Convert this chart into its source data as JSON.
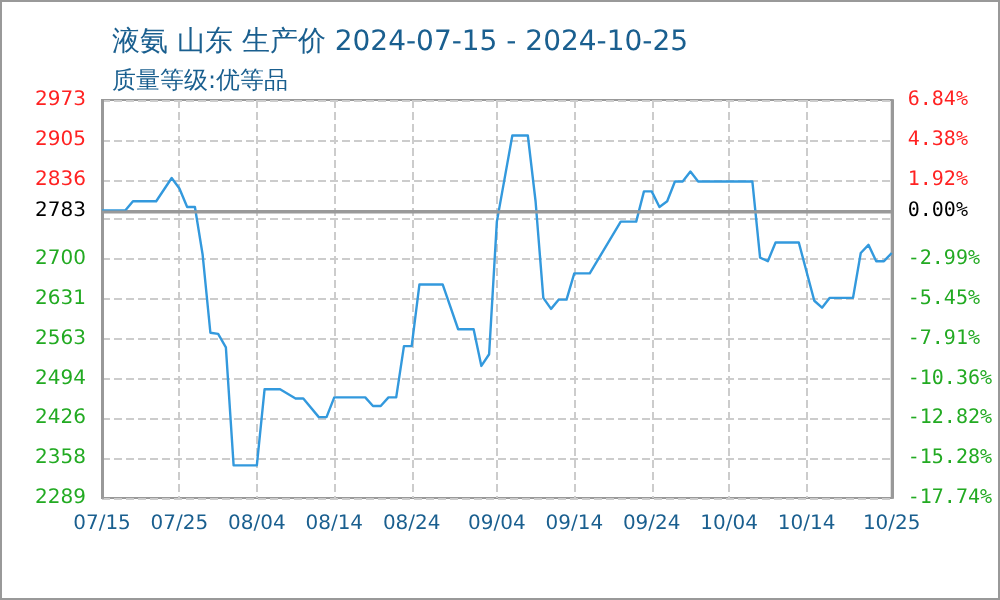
{
  "chart_data": {
    "type": "line",
    "title": "液氨 山东 生产价 2024-07-15 - 2024-10-25",
    "subtitle": "质量等级:优等品",
    "x": [
      "2024-07-15",
      "2024-07-18",
      "2024-07-19",
      "2024-07-22",
      "2024-07-24",
      "2024-07-25",
      "2024-07-26",
      "2024-07-27",
      "2024-07-28",
      "2024-07-29",
      "2024-07-30",
      "2024-07-31",
      "2024-08-01",
      "2024-08-04",
      "2024-08-05",
      "2024-08-07",
      "2024-08-09",
      "2024-08-10",
      "2024-08-12",
      "2024-08-13",
      "2024-08-14",
      "2024-08-18",
      "2024-08-19",
      "2024-08-20",
      "2024-08-21",
      "2024-08-22",
      "2024-08-23",
      "2024-08-24",
      "2024-08-25",
      "2024-08-28",
      "2024-08-30",
      "2024-09-01",
      "2024-09-02",
      "2024-09-03",
      "2024-09-04",
      "2024-09-06",
      "2024-09-08",
      "2024-09-09",
      "2024-09-10",
      "2024-09-11",
      "2024-09-12",
      "2024-09-13",
      "2024-09-14",
      "2024-09-16",
      "2024-09-20",
      "2024-09-22",
      "2024-09-23",
      "2024-09-24",
      "2024-09-25",
      "2024-09-26",
      "2024-09-27",
      "2024-09-28",
      "2024-09-29",
      "2024-09-30",
      "2024-10-07",
      "2024-10-08",
      "2024-10-09",
      "2024-10-10",
      "2024-10-13",
      "2024-10-15",
      "2024-10-16",
      "2024-10-17",
      "2024-10-20",
      "2024-10-21",
      "2024-10-22",
      "2024-10-23",
      "2024-10-24",
      "2024-10-25"
    ],
    "series": [
      {
        "color": "#3399dd",
        "values": [
          2783,
          2783,
          2799,
          2799,
          2839,
          2821,
          2789,
          2789,
          2707,
          2573,
          2571,
          2548,
          2345,
          2345,
          2476,
          2476,
          2460,
          2460,
          2428,
          2428,
          2462,
          2462,
          2447,
          2447,
          2462,
          2462,
          2550,
          2550,
          2656,
          2656,
          2579,
          2579,
          2516,
          2536,
          2764,
          2912,
          2912,
          2799,
          2633,
          2614,
          2630,
          2630,
          2675,
          2675,
          2764,
          2764,
          2816,
          2816,
          2789,
          2799,
          2833,
          2833,
          2850,
          2833,
          2833,
          2702,
          2696,
          2728,
          2728,
          2628,
          2616,
          2633,
          2633,
          2710,
          2724,
          2696,
          2696,
          2710
        ]
      }
    ],
    "xlim": [
      "2024-07-15",
      "2024-10-25"
    ],
    "xticks": [
      {
        "value": "2024-07-15",
        "label": "07/15"
      },
      {
        "value": "2024-07-25",
        "label": "07/25"
      },
      {
        "value": "2024-08-04",
        "label": "08/04"
      },
      {
        "value": "2024-08-14",
        "label": "08/14"
      },
      {
        "value": "2024-08-24",
        "label": "08/24"
      },
      {
        "value": "2024-09-04",
        "label": "09/04"
      },
      {
        "value": "2024-09-14",
        "label": "09/14"
      },
      {
        "value": "2024-09-24",
        "label": "09/24"
      },
      {
        "value": "2024-10-04",
        "label": "10/04"
      },
      {
        "value": "2024-10-14",
        "label": "10/14"
      },
      {
        "value": "2024-10-25",
        "label": "10/25"
      }
    ],
    "ylim": [
      2289,
      2973
    ],
    "yticks": [
      2289,
      2358,
      2426,
      2494,
      2563,
      2631,
      2700,
      {
        "value": 2768,
        "label": null
      },
      2783,
      2836,
      2905,
      2973
    ],
    "y2lim": [
      -17.74,
      6.84
    ],
    "y2ticks": [
      {
        "value": -17.74,
        "label": "-17.74%"
      },
      {
        "value": -15.28,
        "label": "-15.28%"
      },
      {
        "value": -12.82,
        "label": "-12.82%"
      },
      {
        "value": -10.36,
        "label": "-10.36%"
      },
      {
        "value": -7.91,
        "label": "-7.91%"
      },
      {
        "value": -5.45,
        "label": "-5.45%"
      },
      {
        "value": -2.99,
        "label": "-2.99%"
      },
      {
        "value": 0,
        "label": "0.00%"
      },
      {
        "value": 1.92,
        "label": "1.92%"
      },
      {
        "value": 4.38,
        "label": "4.38%"
      },
      {
        "value": 6.84,
        "label": "6.84%"
      }
    ],
    "ref_lines": [
      {
        "axis": "y",
        "value": 2783,
        "color": "#999999",
        "line_style": "solid"
      }
    ],
    "grid": true,
    "marker": "none",
    "line_style": "solid"
  }
}
